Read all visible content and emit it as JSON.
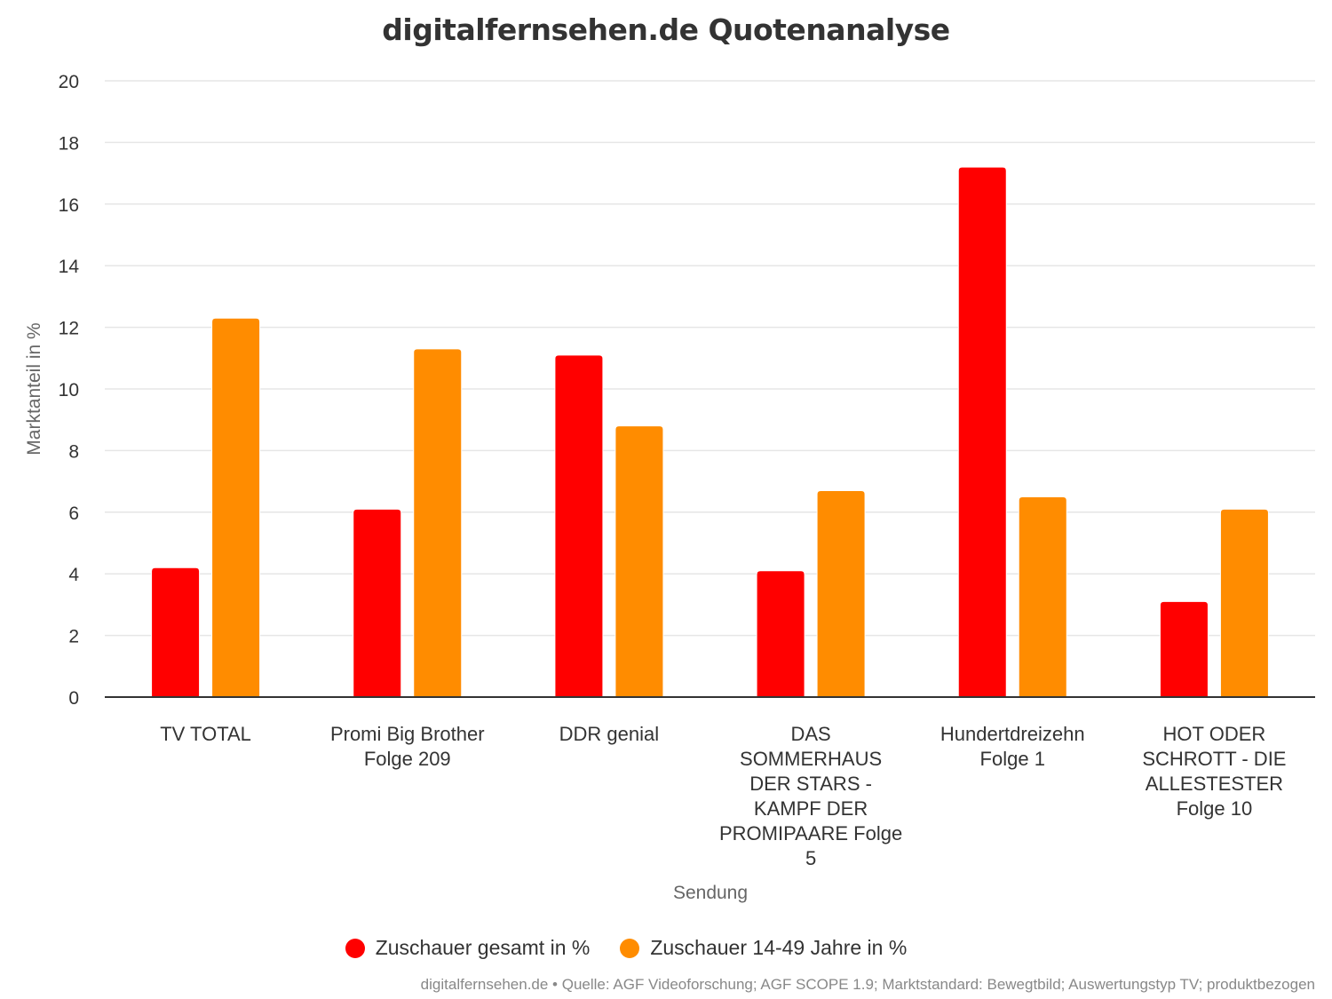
{
  "chart_data": {
    "type": "bar",
    "title": "digitalfernsehen.de Quotenanalyse",
    "xlabel": "Sendung",
    "ylabel": "Marktanteil in %",
    "ylim": [
      0,
      20
    ],
    "yticks": [
      0,
      2,
      4,
      6,
      8,
      10,
      12,
      14,
      16,
      18,
      20
    ],
    "grid": true,
    "legend_position": "bottom-center",
    "categories": [
      [
        "TV TOTAL"
      ],
      [
        "Promi Big Brother",
        "Folge 209"
      ],
      [
        "DDR genial"
      ],
      [
        "DAS",
        "SOMMERHAUS",
        "DER STARS -",
        "KAMPF DER",
        "PROMIPAARE Folge",
        "5"
      ],
      [
        "Hundertdreizehn",
        "Folge 1"
      ],
      [
        "HOT ODER",
        "SCHROTT - DIE",
        "ALLESTESTER",
        "Folge 10"
      ]
    ],
    "series": [
      {
        "name": "Zuschauer gesamt in %",
        "color": "#ff0000",
        "values": [
          4.2,
          6.1,
          11.1,
          4.1,
          17.2,
          3.1
        ]
      },
      {
        "name": "Zuschauer 14-49 Jahre in %",
        "color": "#ff8c00",
        "values": [
          12.3,
          11.3,
          8.8,
          6.7,
          6.5,
          6.1
        ]
      }
    ]
  },
  "credits": "digitalfernsehen.de • Quelle: AGF Videoforschung; AGF SCOPE 1.9; Marktstandard: Bewegtbild; Auswertungstyp TV; produktbezogen"
}
